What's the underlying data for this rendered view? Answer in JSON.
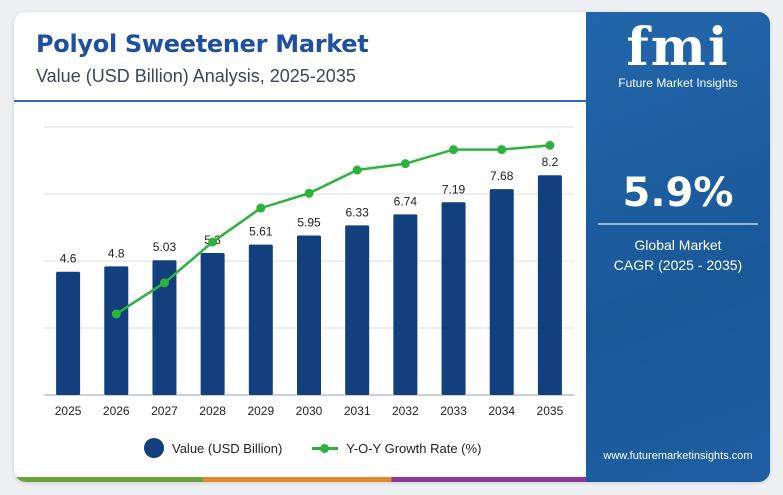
{
  "header": {
    "title": "Polyol Sweetener Market",
    "subtitle": "Value (USD Billion) Analysis, 2025-2035"
  },
  "sidebar": {
    "logo_text": "fmi",
    "logo_subtext": "Future Market Insights",
    "cagr_value": "5.9%",
    "cagr_label_line1": "Global Market",
    "cagr_label_line2": "CAGR (2025 - 2035)",
    "website": "www.futuremarketinsights.com"
  },
  "colors": {
    "bar": "#123f7d",
    "line": "#2db33b",
    "title": "#1f4fa0",
    "sidebar": "#1d5fa3"
  },
  "chart_data": {
    "type": "bar",
    "categories": [
      "2025",
      "2026",
      "2027",
      "2028",
      "2029",
      "2030",
      "2031",
      "2032",
      "2033",
      "2034",
      "2035"
    ],
    "series": [
      {
        "name": "Value (USD Billion)",
        "type": "bar",
        "values": [
          4.6,
          4.8,
          5.03,
          5.3,
          5.61,
          5.95,
          6.33,
          6.74,
          7.19,
          7.68,
          8.2
        ],
        "labels": [
          "4.6",
          "4.8",
          "5.03",
          "5.3",
          "5.61",
          "5.95",
          "6.33",
          "6.74",
          "7.19",
          "7.68",
          "8.2"
        ]
      },
      {
        "name": "Y-O-Y Growth Rate (%)",
        "type": "line",
        "values": [
          null,
          4.35,
          4.79,
          5.37,
          5.85,
          6.06,
          6.39,
          6.48,
          6.68,
          6.68,
          6.74
        ]
      }
    ],
    "ylim_bar": [
      0,
      10
    ],
    "ylim_line": [
      3.2,
      7.0
    ],
    "grid": true,
    "legend_position": "bottom"
  }
}
